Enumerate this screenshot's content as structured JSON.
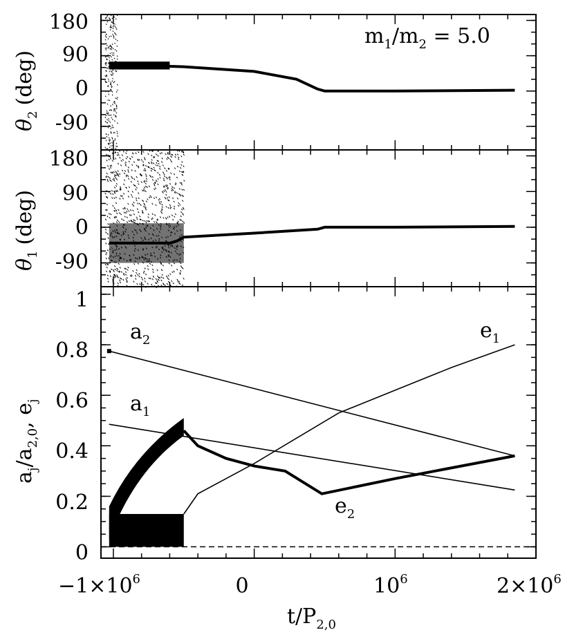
{
  "chart_data": [
    {
      "type": "scatter",
      "panel": "top",
      "ylabel_symbol": "θ",
      "ylabel_sub": "2",
      "ylabel_unit": "(deg)",
      "ylim": [
        -150,
        195
      ],
      "yticks": [
        {
          "value": 180,
          "label": "180"
        },
        {
          "value": 90,
          "label": "90"
        },
        {
          "value": 0,
          "label": "0"
        },
        {
          "value": -90,
          "label": "-90"
        }
      ],
      "annotation": {
        "m1": "m",
        "sub1": "1",
        "slash": "/",
        "m2": "m",
        "sub2": "2",
        "eq": " = 5.0"
      },
      "series": [
        {
          "name": "theta2",
          "x": [
            -1030000.0,
            -1000000.0,
            -900000.0,
            -600000.0,
            -500000.0,
            0,
            300000.0,
            450000.0,
            500000.0,
            1000000.0,
            1850000.0
          ],
          "y": [
            60,
            70,
            65,
            63,
            62,
            50,
            30,
            5,
            0,
            0,
            2
          ]
        }
      ]
    },
    {
      "type": "scatter",
      "panel": "middle",
      "ylabel_symbol": "θ",
      "ylabel_sub": "1",
      "ylabel_unit": "(deg)",
      "ylim": [
        -150,
        195
      ],
      "yticks": [
        {
          "value": 180,
          "label": "180"
        },
        {
          "value": 90,
          "label": "90"
        },
        {
          "value": 0,
          "label": "0"
        },
        {
          "value": -90,
          "label": "-90"
        }
      ],
      "series": [
        {
          "name": "theta1",
          "x": [
            -1030000.0,
            -600000.0,
            -550000.0,
            -500000.0,
            0,
            450000.0,
            500000.0,
            1000000.0,
            1850000.0
          ],
          "y": [
            -40,
            -40,
            -35,
            -25,
            -15,
            -5,
            0,
            0,
            2
          ]
        }
      ]
    },
    {
      "type": "line",
      "panel": "bottom",
      "xlabel_t": "t/P",
      "xlabel_sub": "2,0",
      "ylabel_a": "a",
      "ylabel_a_sub": "j",
      "ylabel_slash": "/a",
      "ylabel_denom_sub": "2,0",
      "ylabel_e": ", e",
      "ylabel_e_sub": "j",
      "xlim": [
        -1088000.0,
        2000000.0
      ],
      "ylim": [
        -0.045,
        1.03
      ],
      "xticks": [
        {
          "value": -1000000.0,
          "base": "−1×10",
          "exp": "6"
        },
        {
          "value": 0,
          "base": "0",
          "exp": ""
        },
        {
          "value": 1000000.0,
          "base": "10",
          "exp": "6"
        },
        {
          "value": 2000000.0,
          "base": "2×10",
          "exp": "6"
        }
      ],
      "yticks": [
        {
          "value": 1.0,
          "label": "1"
        },
        {
          "value": 0.8,
          "label": "0.8"
        },
        {
          "value": 0.6,
          "label": "0.6"
        },
        {
          "value": 0.4,
          "label": "0.4"
        },
        {
          "value": 0.2,
          "label": "0.2"
        },
        {
          "value": 0.0,
          "label": "0"
        }
      ],
      "series": [
        {
          "name": "a2",
          "label": "a",
          "sub": "2",
          "x": [
            -1030000.0,
            1850000.0
          ],
          "y": [
            0.775,
            0.36
          ]
        },
        {
          "name": "a1",
          "label": "a",
          "sub": "1",
          "x": [
            -1030000.0,
            1850000.0
          ],
          "y": [
            0.485,
            0.225
          ]
        },
        {
          "name": "e1",
          "label": "e",
          "sub": "1",
          "x": [
            -500000.0,
            -400000.0,
            -200000.0,
            0,
            300000.0,
            600000.0,
            1000000.0,
            1400000.0,
            1850000.0
          ],
          "y": [
            0.13,
            0.21,
            0.27,
            0.33,
            0.43,
            0.53,
            0.62,
            0.71,
            0.8
          ]
        },
        {
          "name": "e2",
          "label": "e",
          "sub": "2",
          "x": [
            -500000.0,
            -400000.0,
            -200000.0,
            0.0,
            220000.0,
            480000.0,
            1000000.0,
            1850000.0
          ],
          "y": [
            0.46,
            0.4,
            0.35,
            0.32,
            0.3,
            0.21,
            0.27,
            0.36
          ]
        },
        {
          "name": "baseline",
          "x": [
            -1088000.0,
            2000000.0
          ],
          "y": [
            0,
            0
          ]
        }
      ]
    }
  ]
}
